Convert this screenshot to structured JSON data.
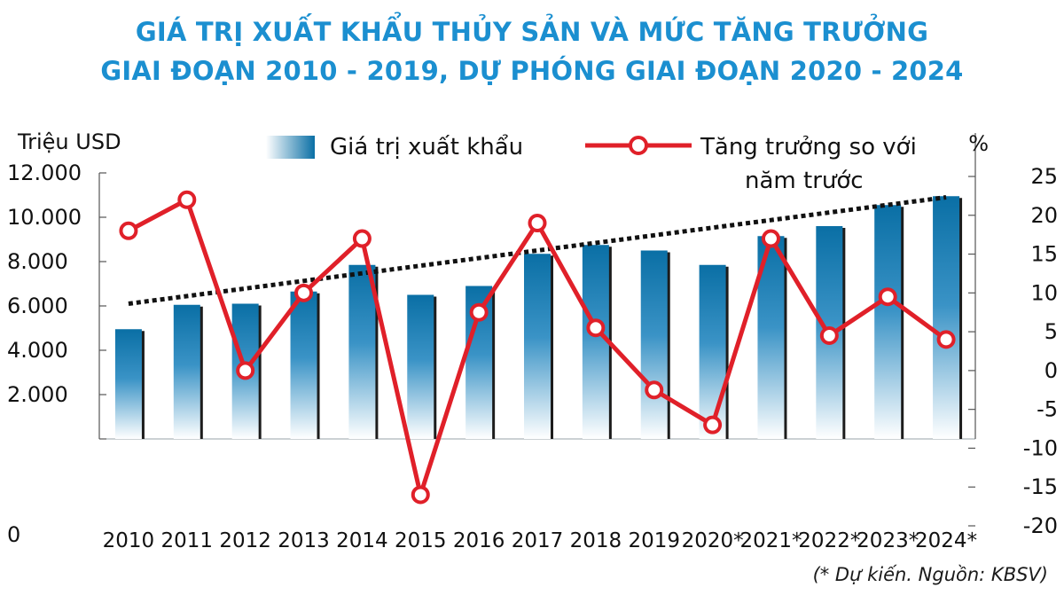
{
  "title": {
    "line1": "GIÁ TRỊ XUẤT KHẨU THỦY SẢN VÀ MỨC TĂNG TRƯỞNG",
    "line2": "GIAI ĐOẠN 2010 - 2019, DỰ PHÓNG GIAI ĐOẠN 2020 - 2024"
  },
  "footnote": "(* Dự kiến. Nguồn: KBSV)",
  "colors": {
    "title": "#1b8fd0",
    "bar_top": "#0a6fa5",
    "bar_bottom": "#ffffff",
    "line": "#e02029",
    "trend": "#111111",
    "axis": "#555555"
  },
  "chart_data": {
    "type": "bar",
    "categories": [
      "2010",
      "2011",
      "2012",
      "2013",
      "2014",
      "2015",
      "2016",
      "2017",
      "2018",
      "2019",
      "2020*",
      "2021*",
      "2022*",
      "2023*",
      "2024*"
    ],
    "series": [
      {
        "name": "Giá trị xuất khẩu",
        "type": "bar",
        "axis": "left",
        "values": [
          4950,
          6050,
          6100,
          6650,
          7850,
          6500,
          6900,
          8350,
          8750,
          8500,
          7850,
          9150,
          9600,
          10550,
          10950
        ]
      },
      {
        "name": "Tăng trưởng so với năm trước",
        "type": "line",
        "axis": "right",
        "values": [
          18,
          22,
          0,
          10,
          17,
          -16,
          7.5,
          19,
          5.5,
          -2.5,
          -7,
          17,
          4.5,
          9.5,
          4
        ]
      }
    ],
    "trendline": {
      "style": "dotted",
      "from": {
        "x": "2010",
        "y": 6100
      },
      "to": {
        "x": "2024*",
        "y": 10900
      }
    },
    "left_axis": {
      "label": "Triệu USD",
      "ylim": [
        0,
        12000
      ],
      "ticks": [
        0,
        2000,
        4000,
        6000,
        8000,
        10000,
        12000
      ],
      "tick_labels": [
        "0",
        "2.000",
        "4.000",
        "6.000",
        "8.000",
        "10.000",
        "12.000"
      ]
    },
    "right_axis": {
      "label": "%",
      "ylim": [
        -20,
        25
      ],
      "ticks": [
        -20,
        -15,
        -10,
        -5,
        0,
        5,
        10,
        15,
        20,
        25
      ],
      "tick_labels": [
        "-20",
        "-15",
        "-10",
        "-5",
        "0",
        "5",
        "10",
        "15",
        "20",
        "25"
      ]
    },
    "legend": {
      "placement": "top",
      "bar_label": "Giá trị xuất khẩu",
      "line_label_1": "Tăng trưởng so với",
      "line_label_2": "năm trước"
    },
    "grid": false
  }
}
